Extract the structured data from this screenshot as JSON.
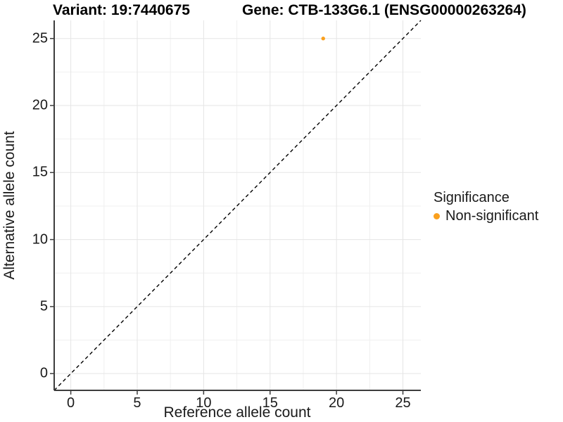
{
  "figure": {
    "title_left": "Variant: 19:7440675",
    "title_right": "Gene: CTB-133G6.1 (ENSG00000263264)"
  },
  "chart_data": {
    "type": "scatter",
    "title": "Variant: 19:7440675   Gene: CTB-133G6.1 (ENSG00000263264)",
    "xlabel": "Reference allele count",
    "ylabel": "Alternative allele count",
    "xlim": [
      -1.25,
      26.35
    ],
    "ylim": [
      -1.25,
      26.35
    ],
    "major_ticks": [
      0,
      5,
      10,
      15,
      20,
      25
    ],
    "minor_ticks": [
      2.5,
      7.5,
      12.5,
      17.5,
      22.5
    ],
    "grid": true,
    "series": [
      {
        "name": "Non-significant",
        "points": [
          {
            "x": 19,
            "y": 25
          }
        ],
        "color": "#FAA01E"
      }
    ],
    "identity_line": {
      "type": "y=x",
      "style": "dashed",
      "color": "#000000"
    },
    "legend": {
      "title": "Significance",
      "position": "right",
      "items": [
        {
          "label": "Non-significant",
          "color": "#FAA01E"
        }
      ]
    },
    "colors": {
      "point_orange": "#FAA01E",
      "axis_line": "#3d3d3d",
      "grid_major": "#e5e5e5",
      "grid_minor": "#f0f0f0",
      "text": "#1a1a1a",
      "background": "#ffffff"
    }
  }
}
